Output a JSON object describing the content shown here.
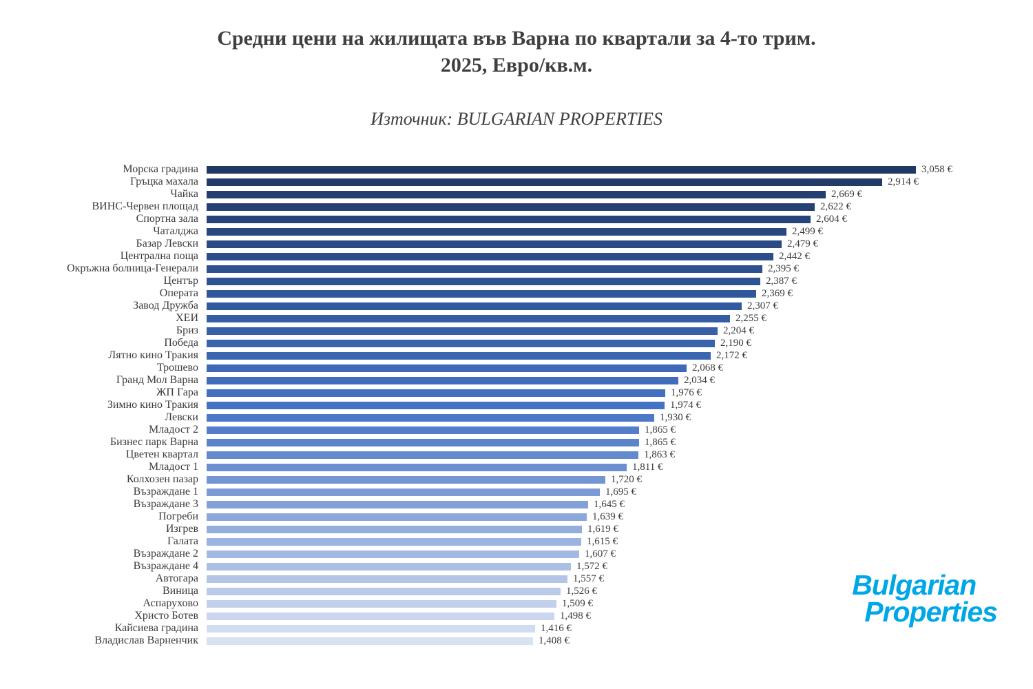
{
  "header": {
    "title_lines": [
      "Средни цени на жилищата във Варна по квартали за 4-то трим.",
      "2025, Евро/кв.м."
    ],
    "subtitle": "Източник: BULGARIAN PROPERTIES"
  },
  "logo": {
    "line1": "Bulgarian",
    "line2": "Properties",
    "color": "#00A7E7"
  },
  "chart_data": {
    "type": "bar",
    "orientation": "horizontal",
    "title": "Средни цени на жилищата във Варна по квартали за 4-то трим. 2025, Евро/кв.м.",
    "subtitle": "Източник: BULGARIAN PROPERTIES",
    "unit": "€",
    "xlim": [
      0,
      3200
    ],
    "grid": false,
    "legend": false,
    "bar_gradient": [
      "#203864",
      "#2F5597",
      "#4472C4",
      "#8FAADC",
      "#D9E2F3"
    ],
    "categories": [
      "Морска градина",
      "Гръцка махала",
      "Чайка",
      "ВИНС-Червен площад",
      "Спортна зала",
      "Чаталджа",
      "Базар Левски",
      "Централна поща",
      "Окръжна болница-Генерали",
      "Център",
      "Операта",
      "Завод Дружба",
      "ХЕИ",
      "Бриз",
      "Победа",
      "Лятно кино Тракия",
      "Трошево",
      "Гранд Мол Варна",
      "ЖП Гара",
      "Зимно кино Тракия",
      "Левски",
      "Младост 2",
      "Бизнес парк Варна",
      "Цветен квартал",
      "Младост 1",
      "Колхозен пазар",
      "Възраждане 1",
      "Възраждане 3",
      "Погреби",
      "Изгрев",
      "Галата",
      "Възраждане 2",
      "Възраждане 4",
      "Автогара",
      "Виница",
      "Аспарухово",
      "Христо Ботев",
      "Кайсиева градина",
      "Владислав Варненчик"
    ],
    "values": [
      3058,
      2914,
      2669,
      2622,
      2604,
      2499,
      2479,
      2442,
      2395,
      2387,
      2369,
      2307,
      2255,
      2204,
      2190,
      2172,
      2068,
      2034,
      1976,
      1974,
      1930,
      1865,
      1865,
      1863,
      1811,
      1720,
      1695,
      1645,
      1639,
      1619,
      1615,
      1607,
      1572,
      1557,
      1526,
      1509,
      1498,
      1416,
      1408
    ],
    "value_labels": [
      "3,058 €",
      "2,914 €",
      "2,669 €",
      "2,622 €",
      "2,604 €",
      "2,499 €",
      "2,479 €",
      "2,442 €",
      "2,395 €",
      "2,387 €",
      "2,369 €",
      "2,307 €",
      "2,255 €",
      "2,204 €",
      "2,190 €",
      "2,172 €",
      "2,068 €",
      "2,034 €",
      "1,976 €",
      "1,974 €",
      "1,930 €",
      "1,865 €",
      "1,865 €",
      "1,863 €",
      "1,811 €",
      "1,720 €",
      "1,695 €",
      "1,645 €",
      "1,639 €",
      "1,619 €",
      "1,615 €",
      "1,607 €",
      "1,572 €",
      "1,557 €",
      "1,526 €",
      "1,509 €",
      "1,498 €",
      "1,416 €",
      "1,408 €"
    ]
  }
}
